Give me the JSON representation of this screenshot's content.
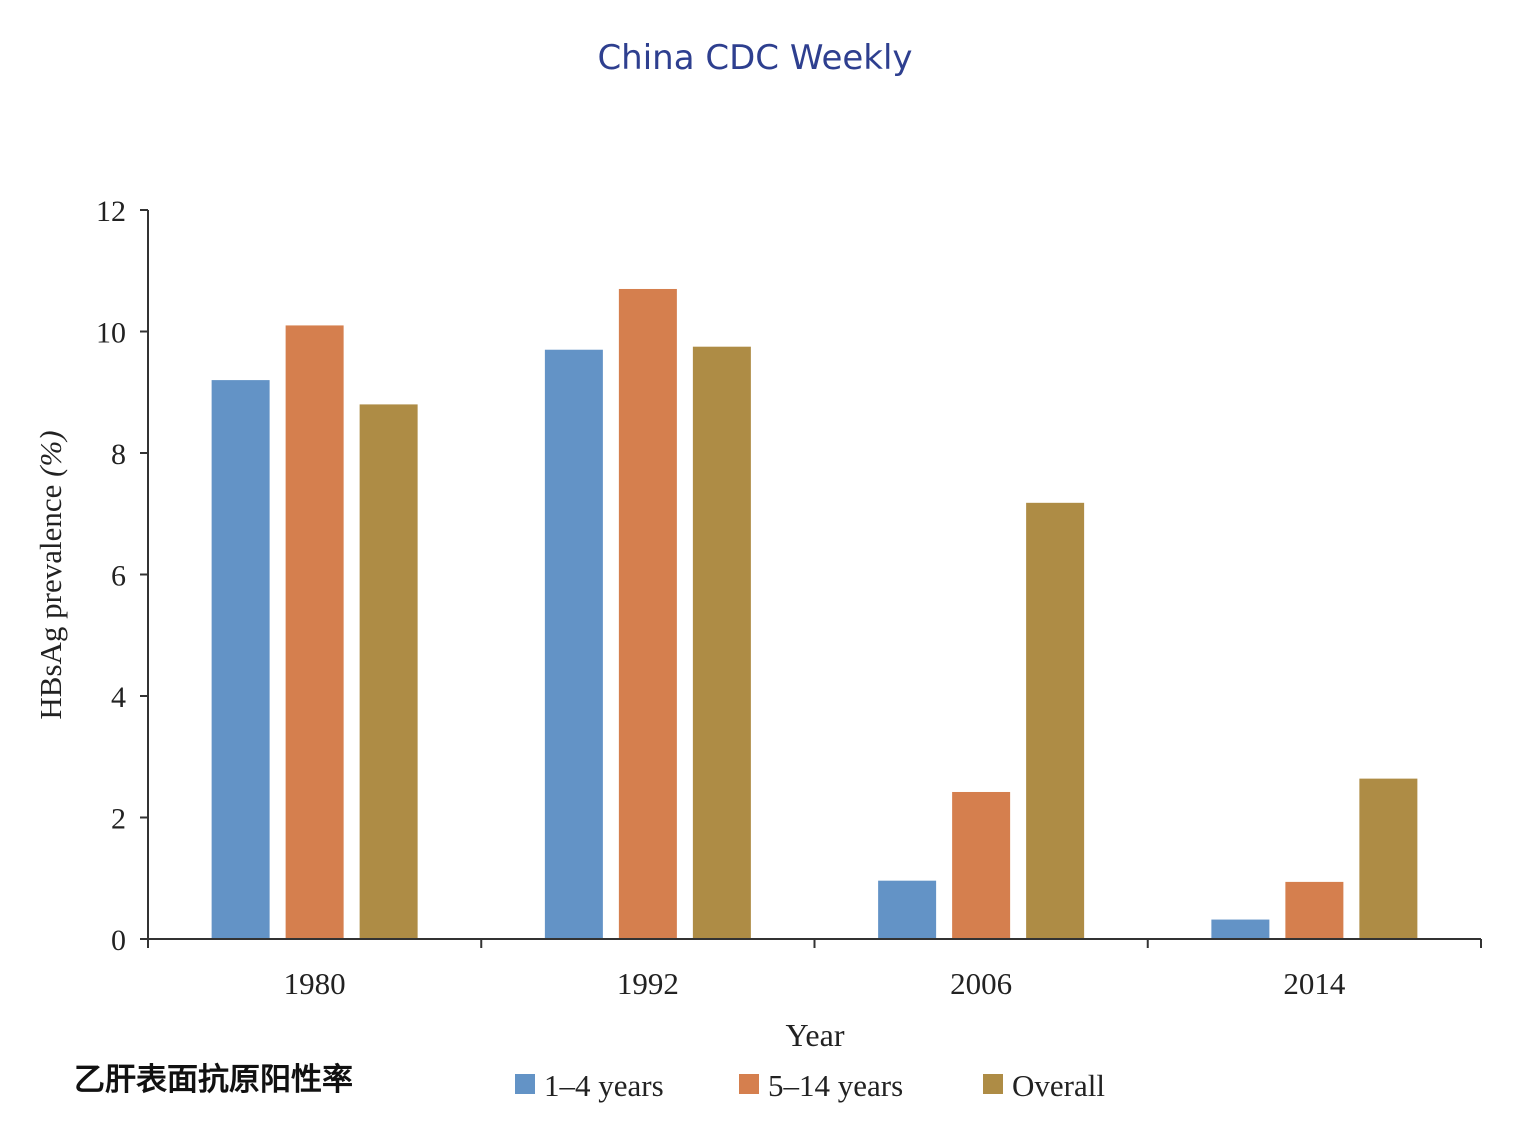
{
  "header": {
    "title": "China CDC Weekly"
  },
  "caption": "乙肝表面抗原阳性率",
  "chart_data": {
    "type": "bar",
    "title": "",
    "xlabel": "Year",
    "ylabel_main": "HBsAg prevalence ",
    "ylabel_unit": "(%)",
    "categories": [
      "1980",
      "1992",
      "2006",
      "2014"
    ],
    "ylim": [
      0,
      12
    ],
    "yticks": [
      0,
      2,
      4,
      6,
      8,
      10,
      12
    ],
    "grid": false,
    "legend_position": "bottom",
    "series": [
      {
        "name": "1–4 years",
        "color": "#6393c6",
        "values": [
          9.2,
          9.7,
          0.96,
          0.32
        ]
      },
      {
        "name": "5–14 years",
        "color": "#d57f4e",
        "values": [
          10.1,
          10.7,
          2.42,
          0.94
        ]
      },
      {
        "name": "Overall",
        "color": "#ae8c45",
        "values": [
          8.8,
          9.75,
          7.18,
          2.64
        ]
      }
    ]
  }
}
